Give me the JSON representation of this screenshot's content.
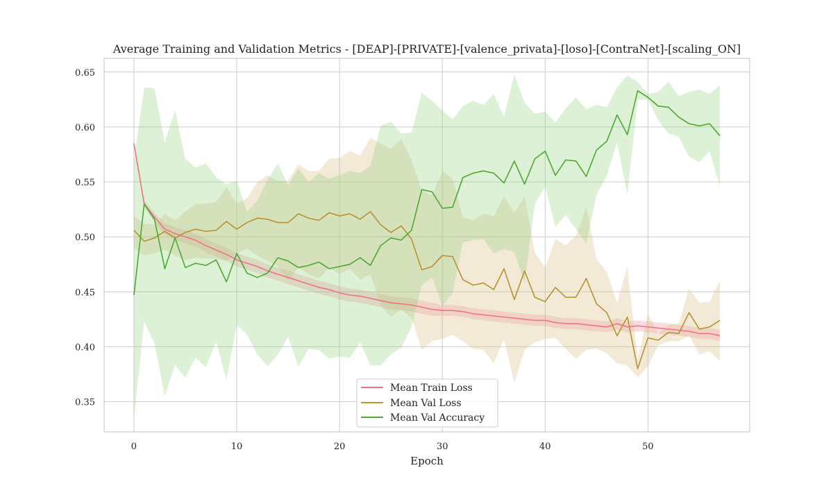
{
  "chart_data": {
    "type": "line",
    "title": "Average Training and Validation Metrics - [DEAP]-[PRIVATE]-[valence_privata]-[loso]-[ContraNet]-[scaling_ON]",
    "xlabel": "Epoch",
    "ylabel": "",
    "xlim": [
      -2.9,
      59.9
    ],
    "ylim": [
      0.3225,
      0.6625
    ],
    "xticks": [
      0,
      10,
      20,
      30,
      40,
      50
    ],
    "yticks": [
      0.35,
      0.4,
      0.45,
      0.5,
      0.55,
      0.6,
      0.65
    ],
    "xtick_labels": [
      "0",
      "10",
      "20",
      "30",
      "40",
      "50"
    ],
    "ytick_labels": [
      "0.35",
      "0.40",
      "0.45",
      "0.50",
      "0.55",
      "0.60",
      "0.65"
    ],
    "grid": true,
    "legend_position": "lower-center",
    "x": [
      0,
      1,
      2,
      3,
      4,
      5,
      6,
      7,
      8,
      9,
      10,
      11,
      12,
      13,
      14,
      15,
      16,
      17,
      18,
      19,
      20,
      21,
      22,
      23,
      24,
      25,
      26,
      27,
      28,
      29,
      30,
      31,
      32,
      33,
      34,
      35,
      36,
      37,
      38,
      39,
      40,
      41,
      42,
      43,
      44,
      45,
      46,
      47,
      48,
      49,
      50,
      51,
      52,
      53,
      54,
      55,
      56,
      57
    ],
    "series": [
      {
        "name": "Mean Train Loss",
        "color": "#f07383",
        "band_color": "#f07383",
        "band_opacity": 0.25,
        "values": [
          0.585,
          0.53,
          0.518,
          0.507,
          0.503,
          0.5,
          0.497,
          0.492,
          0.488,
          0.484,
          0.479,
          0.476,
          0.473,
          0.469,
          0.466,
          0.463,
          0.46,
          0.457,
          0.454,
          0.452,
          0.449,
          0.447,
          0.446,
          0.444,
          0.442,
          0.44,
          0.439,
          0.438,
          0.436,
          0.434,
          0.433,
          0.433,
          0.432,
          0.43,
          0.429,
          0.428,
          0.427,
          0.426,
          0.425,
          0.424,
          0.424,
          0.422,
          0.421,
          0.421,
          0.42,
          0.419,
          0.418,
          0.421,
          0.418,
          0.419,
          0.418,
          0.417,
          0.416,
          0.415,
          0.414,
          0.412,
          0.412,
          0.41
        ],
        "lower": [
          0.582,
          0.527,
          0.514,
          0.502,
          0.497,
          0.494,
          0.491,
          0.486,
          0.482,
          0.478,
          0.473,
          0.47,
          0.467,
          0.463,
          0.46,
          0.457,
          0.454,
          0.451,
          0.448,
          0.446,
          0.443,
          0.441,
          0.44,
          0.438,
          0.436,
          0.434,
          0.433,
          0.432,
          0.43,
          0.428,
          0.428,
          0.428,
          0.427,
          0.425,
          0.424,
          0.423,
          0.422,
          0.421,
          0.42,
          0.419,
          0.419,
          0.417,
          0.416,
          0.416,
          0.415,
          0.414,
          0.413,
          0.416,
          0.413,
          0.414,
          0.413,
          0.412,
          0.411,
          0.41,
          0.409,
          0.407,
          0.407,
          0.405
        ],
        "upper": [
          0.588,
          0.533,
          0.522,
          0.512,
          0.509,
          0.506,
          0.503,
          0.498,
          0.494,
          0.49,
          0.485,
          0.482,
          0.479,
          0.475,
          0.472,
          0.469,
          0.466,
          0.463,
          0.46,
          0.458,
          0.455,
          0.453,
          0.452,
          0.45,
          0.448,
          0.446,
          0.445,
          0.444,
          0.442,
          0.44,
          0.438,
          0.438,
          0.437,
          0.435,
          0.434,
          0.433,
          0.432,
          0.431,
          0.43,
          0.429,
          0.429,
          0.427,
          0.426,
          0.426,
          0.425,
          0.424,
          0.423,
          0.426,
          0.423,
          0.424,
          0.423,
          0.422,
          0.421,
          0.42,
          0.419,
          0.417,
          0.417,
          0.415
        ]
      },
      {
        "name": "Mean Val Loss",
        "color": "#b8922e",
        "band_color": "#d9bf8c",
        "band_opacity": 0.35,
        "values": [
          0.506,
          0.496,
          0.499,
          0.505,
          0.499,
          0.504,
          0.507,
          0.505,
          0.506,
          0.514,
          0.507,
          0.513,
          0.517,
          0.516,
          0.513,
          0.513,
          0.521,
          0.517,
          0.515,
          0.522,
          0.519,
          0.521,
          0.516,
          0.523,
          0.511,
          0.504,
          0.51,
          0.498,
          0.47,
          0.473,
          0.483,
          0.482,
          0.461,
          0.456,
          0.458,
          0.452,
          0.471,
          0.443,
          0.469,
          0.445,
          0.441,
          0.454,
          0.445,
          0.445,
          0.462,
          0.439,
          0.431,
          0.41,
          0.427,
          0.38,
          0.408,
          0.406,
          0.413,
          0.412,
          0.431,
          0.416,
          0.418,
          0.424
        ],
        "lower": [
          0.49,
          0.483,
          0.485,
          0.488,
          0.483,
          0.479,
          0.481,
          0.48,
          0.48,
          0.478,
          0.485,
          0.489,
          0.483,
          0.478,
          0.473,
          0.46,
          0.472,
          0.466,
          0.462,
          0.472,
          0.466,
          0.471,
          0.461,
          0.466,
          0.438,
          0.427,
          0.434,
          0.426,
          0.397,
          0.405,
          0.407,
          0.411,
          0.405,
          0.398,
          0.397,
          0.385,
          0.407,
          0.367,
          0.397,
          0.404,
          0.407,
          0.408,
          0.398,
          0.389,
          0.397,
          0.398,
          0.394,
          0.385,
          0.383,
          0.372,
          0.382,
          0.401,
          0.405,
          0.405,
          0.41,
          0.393,
          0.396,
          0.387
        ],
        "upper": [
          0.519,
          0.512,
          0.511,
          0.521,
          0.515,
          0.523,
          0.53,
          0.53,
          0.532,
          0.545,
          0.53,
          0.535,
          0.55,
          0.556,
          0.551,
          0.551,
          0.566,
          0.56,
          0.56,
          0.571,
          0.572,
          0.578,
          0.574,
          0.59,
          0.585,
          0.58,
          0.589,
          0.57,
          0.542,
          0.538,
          0.56,
          0.553,
          0.518,
          0.515,
          0.521,
          0.519,
          0.537,
          0.522,
          0.537,
          0.486,
          0.472,
          0.498,
          0.492,
          0.501,
          0.527,
          0.48,
          0.468,
          0.44,
          0.473,
          0.388,
          0.43,
          0.412,
          0.42,
          0.421,
          0.453,
          0.44,
          0.441,
          0.46
        ]
      },
      {
        "name": "Mean Val Accuracy",
        "color": "#4ca832",
        "band_color": "#8fcf7a",
        "band_opacity": 0.3,
        "values": [
          0.447,
          0.53,
          0.516,
          0.471,
          0.499,
          0.472,
          0.476,
          0.474,
          0.479,
          0.459,
          0.485,
          0.467,
          0.463,
          0.467,
          0.481,
          0.478,
          0.472,
          0.474,
          0.477,
          0.471,
          0.473,
          0.475,
          0.481,
          0.474,
          0.492,
          0.499,
          0.497,
          0.506,
          0.543,
          0.541,
          0.526,
          0.527,
          0.554,
          0.558,
          0.56,
          0.558,
          0.549,
          0.569,
          0.548,
          0.571,
          0.578,
          0.556,
          0.57,
          0.569,
          0.555,
          0.579,
          0.587,
          0.611,
          0.593,
          0.633,
          0.627,
          0.619,
          0.618,
          0.609,
          0.603,
          0.601,
          0.603,
          0.592
        ],
        "lower": [
          0.335,
          0.423,
          0.403,
          0.355,
          0.383,
          0.372,
          0.39,
          0.381,
          0.405,
          0.37,
          0.42,
          0.411,
          0.393,
          0.382,
          0.393,
          0.409,
          0.382,
          0.398,
          0.397,
          0.389,
          0.391,
          0.39,
          0.404,
          0.383,
          0.383,
          0.393,
          0.399,
          0.418,
          0.456,
          0.463,
          0.437,
          0.449,
          0.495,
          0.497,
          0.498,
          0.485,
          0.489,
          0.486,
          0.458,
          0.53,
          0.546,
          0.509,
          0.52,
          0.507,
          0.494,
          0.538,
          0.556,
          0.586,
          0.538,
          0.625,
          0.625,
          0.606,
          0.594,
          0.591,
          0.573,
          0.568,
          0.578,
          0.546
        ],
        "upper": [
          0.57,
          0.636,
          0.635,
          0.586,
          0.615,
          0.571,
          0.563,
          0.567,
          0.554,
          0.548,
          0.551,
          0.523,
          0.533,
          0.552,
          0.567,
          0.547,
          0.562,
          0.55,
          0.558,
          0.553,
          0.556,
          0.56,
          0.558,
          0.565,
          0.601,
          0.605,
          0.594,
          0.595,
          0.631,
          0.624,
          0.615,
          0.607,
          0.619,
          0.624,
          0.62,
          0.63,
          0.609,
          0.648,
          0.622,
          0.612,
          0.614,
          0.604,
          0.617,
          0.627,
          0.616,
          0.62,
          0.618,
          0.636,
          0.647,
          0.641,
          0.63,
          0.632,
          0.641,
          0.628,
          0.632,
          0.634,
          0.63,
          0.638
        ]
      }
    ]
  }
}
